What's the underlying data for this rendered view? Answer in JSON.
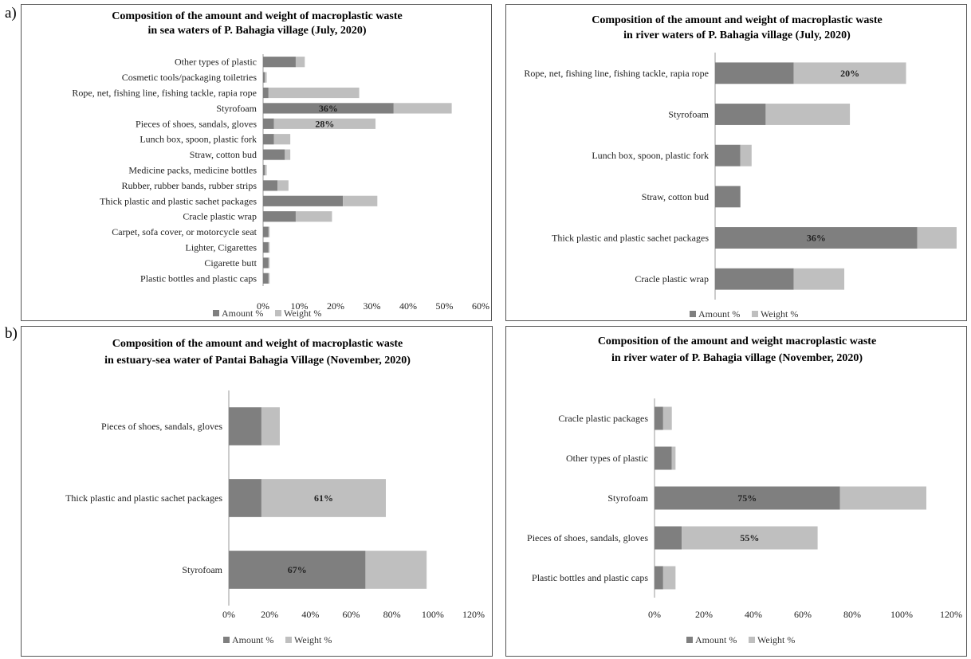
{
  "panel_labels": [
    "a)",
    "b)"
  ],
  "colors": {
    "amount": "#7f7f7f",
    "weight": "#bfbfbf"
  },
  "chart_data": [
    {
      "type": "bar",
      "orientation": "horizontal",
      "stacked": true,
      "title": [
        "Composition of the amount and weight of macroplastic waste",
        "in sea waters of  P. Bahagia village  (July, 2020)"
      ],
      "categories": [
        "Other types of plastic",
        "Cosmetic tools/packaging toiletries",
        "Rope, net, fishing line, fishing tackle, rapia rope",
        "Styrofoam",
        "Pieces of shoes, sandals, gloves",
        "Lunch box, spoon, plastic fork",
        "Straw, cotton bud",
        "Medicine packs, medicine bottles",
        "Rubber, rubber bands, rubber strips",
        "Thick plastic and plastic sachet packages",
        "Cracle plastic wrap",
        "Carpet, sofa cover, or motorcycle seat",
        "Lighter, Cigarettes",
        "Cigarette butt",
        "Plastic bottles and plastic caps"
      ],
      "series": [
        {
          "name": "Amount %",
          "values": [
            9,
            0.5,
            1.5,
            36,
            3,
            3,
            6,
            0.5,
            4,
            22,
            9,
            1.5,
            1.5,
            1.5,
            1.5
          ]
        },
        {
          "name": "Weight %",
          "values": [
            2.5,
            0.5,
            25,
            16,
            28,
            4.5,
            1.5,
            0.5,
            3,
            9.5,
            10,
            0.3,
            0.3,
            0.3,
            0.3
          ]
        }
      ],
      "bar_labels": [
        [
          null,
          null,
          null,
          "36%",
          null,
          null,
          null,
          null,
          null,
          null,
          null,
          null,
          null,
          null,
          null
        ],
        [
          null,
          null,
          null,
          null,
          "28%",
          null,
          null,
          null,
          null,
          null,
          null,
          null,
          null,
          null,
          null
        ]
      ],
      "xticks": [
        "0%",
        "10%",
        "20%",
        "30%",
        "40%",
        "50%",
        "60%"
      ],
      "xlim": [
        0,
        60
      ],
      "legend": [
        "Amount %",
        "Weight %"
      ]
    },
    {
      "type": "bar",
      "orientation": "horizontal",
      "stacked": true,
      "title": [
        "Composition of the amount and weight of macroplastic waste",
        "in river waters of  P. Bahagia village  (July, 2020)"
      ],
      "categories": [
        "Rope, net, fishing line, fishing tackle, rapia rope",
        "Styrofoam",
        "Lunch box, spoon, plastic fork",
        "Straw, cotton bud",
        "Thick plastic and plastic sachet packages",
        "Cracle plastic wrap"
      ],
      "series": [
        {
          "name": "Amount %",
          "values": [
            14,
            9,
            4.5,
            4.5,
            36,
            14
          ]
        },
        {
          "name": "Weight %",
          "values": [
            20,
            15,
            2,
            0,
            7,
            9
          ]
        }
      ],
      "bar_labels": [
        [
          null,
          null,
          null,
          null,
          "36%",
          null
        ],
        [
          "20%",
          null,
          null,
          null,
          null,
          null
        ]
      ],
      "xticks": [],
      "xlim": [
        0,
        44
      ],
      "legend": [
        "Amount %",
        "Weight %"
      ]
    },
    {
      "type": "bar",
      "orientation": "horizontal",
      "stacked": true,
      "title": [
        "Composition of the amount and weight of macroplastic waste",
        "in estuary-sea water of Pantai Bahagia Village  (November, 2020)"
      ],
      "categories": [
        "Pieces of shoes, sandals, gloves",
        "Thick plastic and plastic sachet packages",
        "Styrofoam"
      ],
      "series": [
        {
          "name": "Amount %",
          "values": [
            16,
            16,
            67
          ]
        },
        {
          "name": "Weight %",
          "values": [
            9,
            61,
            30
          ]
        }
      ],
      "bar_labels": [
        [
          null,
          null,
          "67%"
        ],
        [
          null,
          "61%",
          null
        ]
      ],
      "xticks": [
        "0%",
        "20%",
        "40%",
        "60%",
        "80%",
        "100%",
        "120%"
      ],
      "xlim": [
        0,
        120
      ],
      "legend": [
        "Amount %",
        "Weight %"
      ]
    },
    {
      "type": "bar",
      "orientation": "horizontal",
      "stacked": true,
      "title": [
        "Composition of the amount and weight macroplastic waste",
        "in river water of P. Bahagia village  (November, 2020)"
      ],
      "categories": [
        "Cracle plastic packages",
        "Other types of plastic",
        "Styrofoam",
        "Pieces of shoes, sandals, gloves",
        "Plastic bottles and plastic caps"
      ],
      "series": [
        {
          "name": "Amount %",
          "values": [
            3.5,
            7,
            75,
            11,
            3.5
          ]
        },
        {
          "name": "Weight %",
          "values": [
            3.5,
            1.5,
            35,
            55,
            5
          ]
        }
      ],
      "bar_labels": [
        [
          null,
          null,
          "75%",
          null,
          null
        ],
        [
          null,
          null,
          null,
          "55%",
          null
        ]
      ],
      "xticks": [
        "0%",
        "20%",
        "40%",
        "60%",
        "80%",
        "100%",
        "120%"
      ],
      "xlim": [
        0,
        120
      ],
      "legend": [
        "Amount %",
        "Weight %"
      ]
    }
  ]
}
